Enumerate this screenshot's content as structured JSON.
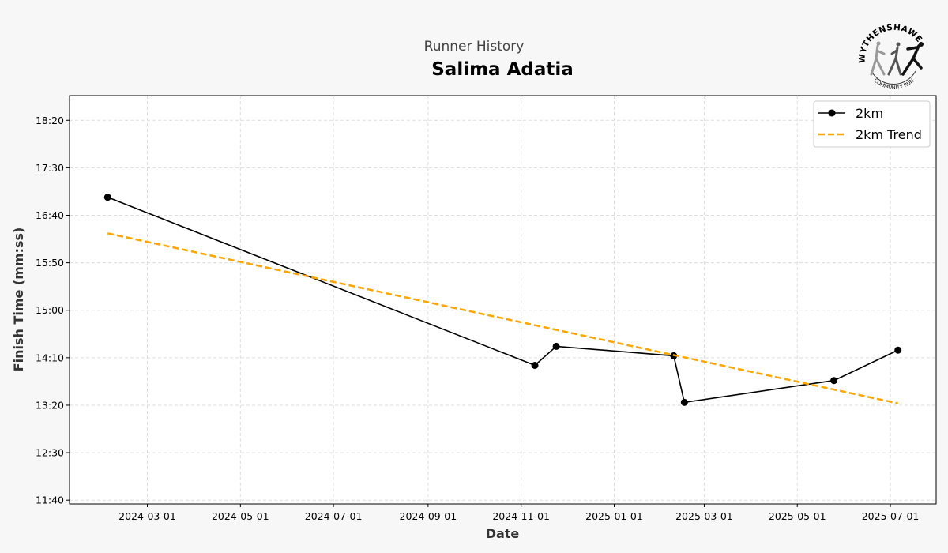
{
  "chart_data": {
    "type": "line",
    "subtitle": "Runner History",
    "title": "Salima Adatia",
    "xlabel": "Date",
    "ylabel": "Finish Time (mm:ss)",
    "xlim": [
      "2024-01-10",
      "2025-07-31"
    ],
    "ylim": [
      "11:36",
      "18:46"
    ],
    "x_ticks": [
      "2024-03-01",
      "2024-05-01",
      "2024-07-01",
      "2024-09-01",
      "2024-11-01",
      "2025-01-01",
      "2025-03-01",
      "2025-05-01",
      "2025-07-01"
    ],
    "y_ticks": [
      "11:40",
      "12:30",
      "13:20",
      "14:10",
      "15:00",
      "15:50",
      "16:40",
      "17:30",
      "18:20"
    ],
    "grid": true,
    "legend_position": "top-right",
    "series": [
      {
        "name": "2km",
        "style": "solid-markers",
        "color": "#000000",
        "x": [
          "2024-02-04",
          "2024-11-10",
          "2024-11-24",
          "2025-02-09",
          "2025-02-16",
          "2025-05-25",
          "2025-07-06"
        ],
        "y": [
          "16:59",
          "14:02",
          "14:22",
          "14:12",
          "13:23",
          "13:46",
          "14:18"
        ]
      },
      {
        "name": "2km Trend",
        "style": "dashed",
        "color": "#ffa500",
        "x": [
          "2024-02-04",
          "2025-07-06"
        ],
        "y": [
          "16:21",
          "13:22"
        ]
      }
    ]
  },
  "logo": {
    "top_text": "WYTHENSHAWE",
    "bottom_text": "COMMUNITY RUN"
  }
}
